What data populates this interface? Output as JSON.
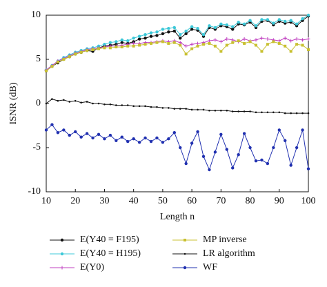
{
  "chart_data": {
    "type": "line",
    "xlabel": "Length n",
    "ylabel": "ISNR (dB)",
    "x": [
      10,
      12,
      14,
      16,
      18,
      20,
      22,
      24,
      26,
      28,
      30,
      32,
      34,
      36,
      38,
      40,
      42,
      44,
      46,
      48,
      50,
      52,
      54,
      56,
      58,
      60,
      62,
      64,
      66,
      68,
      70,
      72,
      74,
      76,
      78,
      80,
      82,
      84,
      86,
      88,
      90,
      92,
      94,
      96,
      98,
      100
    ],
    "xlim": [
      10,
      100
    ],
    "xticks": [
      10,
      20,
      30,
      40,
      50,
      60,
      70,
      80,
      90,
      100
    ],
    "ylim": [
      -10,
      10
    ],
    "yticks": [
      -10,
      -5,
      0,
      5,
      10
    ],
    "grid": false,
    "series": [
      {
        "name": "E(Y40 = F195)",
        "color": "#111111",
        "marker": "dot",
        "values": [
          3.7,
          4.2,
          4.6,
          5.0,
          5.3,
          5.6,
          5.8,
          6.0,
          5.9,
          6.3,
          6.5,
          6.6,
          6.7,
          6.9,
          6.8,
          7.0,
          7.3,
          7.4,
          7.6,
          7.7,
          7.9,
          8.1,
          8.2,
          7.4,
          7.9,
          8.4,
          8.3,
          7.6,
          8.6,
          8.4,
          8.8,
          8.7,
          8.4,
          9.0,
          8.9,
          9.2,
          8.6,
          9.3,
          9.4,
          8.9,
          9.3,
          9.1,
          9.2,
          8.8,
          9.4,
          9.9
        ]
      },
      {
        "name": "E(Y40 = H195)",
        "color": "#3cc8d8",
        "marker": "dot",
        "values": [
          3.8,
          4.3,
          4.8,
          5.2,
          5.5,
          5.8,
          6.0,
          6.2,
          6.3,
          6.5,
          6.7,
          6.9,
          7.0,
          7.2,
          7.1,
          7.4,
          7.6,
          7.8,
          8.0,
          8.1,
          8.4,
          8.5,
          8.6,
          7.8,
          8.2,
          8.7,
          8.5,
          7.8,
          8.8,
          8.6,
          9.0,
          8.9,
          8.7,
          9.2,
          9.0,
          9.4,
          8.8,
          9.5,
          9.5,
          9.1,
          9.5,
          9.3,
          9.4,
          9.0,
          9.6,
          10.0
        ]
      },
      {
        "name": "E(Y0)",
        "color": "#c040c0",
        "marker": "plus",
        "values": [
          3.8,
          4.3,
          4.8,
          5.1,
          5.4,
          5.7,
          5.9,
          6.1,
          6.2,
          6.3,
          6.4,
          6.5,
          6.5,
          6.6,
          6.7,
          6.8,
          6.8,
          6.9,
          6.9,
          7.0,
          7.1,
          7.0,
          7.1,
          6.9,
          6.5,
          6.7,
          6.8,
          6.9,
          7.1,
          7.2,
          7.0,
          7.3,
          7.2,
          7.0,
          7.3,
          7.1,
          7.2,
          7.4,
          7.3,
          7.2,
          7.1,
          7.4,
          7.1,
          7.3,
          7.2,
          7.3
        ]
      },
      {
        "name": "MP inverse",
        "color": "#c8c030",
        "marker": "square",
        "values": [
          3.7,
          4.2,
          4.7,
          5.0,
          5.3,
          5.6,
          5.8,
          6.0,
          6.1,
          6.2,
          6.3,
          6.3,
          6.4,
          6.4,
          6.5,
          6.5,
          6.6,
          6.7,
          6.8,
          6.9,
          7.0,
          6.8,
          6.9,
          6.6,
          5.6,
          6.2,
          6.5,
          6.7,
          6.8,
          6.5,
          5.9,
          6.6,
          6.9,
          7.1,
          6.8,
          7.0,
          6.6,
          5.9,
          6.7,
          7.0,
          6.8,
          6.5,
          5.9,
          6.7,
          6.6,
          6.1
        ]
      },
      {
        "name": "LR algorithm",
        "color": "#111111",
        "marker": "small",
        "values": [
          0.0,
          0.5,
          0.3,
          0.4,
          0.2,
          0.3,
          0.1,
          0.2,
          0.0,
          0.0,
          -0.1,
          -0.1,
          -0.2,
          -0.2,
          -0.2,
          -0.3,
          -0.3,
          -0.3,
          -0.4,
          -0.4,
          -0.5,
          -0.5,
          -0.6,
          -0.6,
          -0.6,
          -0.7,
          -0.7,
          -0.7,
          -0.8,
          -0.8,
          -0.8,
          -0.8,
          -0.9,
          -0.9,
          -0.9,
          -0.9,
          -1.0,
          -1.0,
          -1.0,
          -1.0,
          -1.0,
          -1.1,
          -1.1,
          -1.1,
          -1.1,
          -1.1
        ]
      },
      {
        "name": "WF",
        "color": "#2030b0",
        "marker": "dot",
        "values": [
          -3.0,
          -2.4,
          -3.3,
          -3.0,
          -3.6,
          -3.2,
          -3.8,
          -3.4,
          -3.9,
          -3.5,
          -4.0,
          -3.6,
          -4.2,
          -3.8,
          -4.3,
          -4.0,
          -4.4,
          -3.9,
          -4.3,
          -3.9,
          -4.4,
          -4.0,
          -3.3,
          -5.0,
          -6.8,
          -4.5,
          -3.2,
          -6.0,
          -7.5,
          -5.5,
          -3.5,
          -5.2,
          -7.3,
          -5.8,
          -3.4,
          -5.0,
          -6.5,
          -6.4,
          -6.8,
          -5.0,
          -3.0,
          -4.2,
          -7.0,
          -5.0,
          -3.0,
          -7.4
        ]
      }
    ]
  }
}
